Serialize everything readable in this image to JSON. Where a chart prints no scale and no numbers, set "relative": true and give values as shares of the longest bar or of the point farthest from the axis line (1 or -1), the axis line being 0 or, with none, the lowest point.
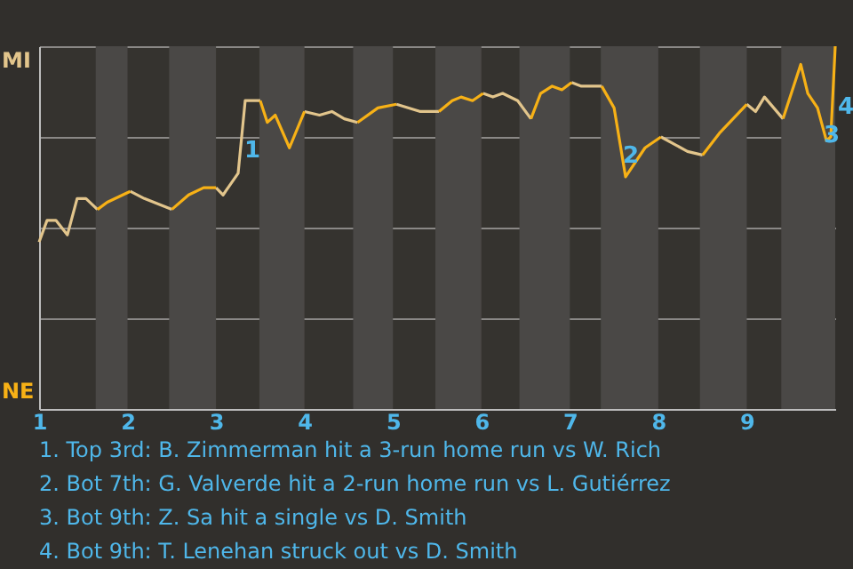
{
  "chart_data": {
    "type": "line",
    "relative": true,
    "x": [
      1.0,
      1.09,
      1.19,
      1.32,
      1.43,
      1.53,
      1.66,
      1.77,
      2.03,
      2.19,
      2.5,
      2.69,
      2.86,
      3.0,
      3.08,
      3.25,
      3.33,
      3.4,
      3.5,
      3.58,
      3.67,
      3.83,
      4.0,
      4.17,
      4.31,
      4.45,
      4.6,
      4.83,
      5.04,
      5.31,
      5.52,
      5.67,
      5.77,
      5.9,
      6.02,
      6.13,
      6.24,
      6.41,
      6.56,
      6.67,
      6.8,
      6.91,
      7.02,
      7.13,
      7.36,
      7.5,
      7.63,
      7.85,
      8.03,
      8.33,
      8.5,
      8.69,
      9.0,
      9.1,
      9.2,
      9.41,
      9.61,
      9.69,
      9.8,
      9.9,
      9.95,
      10.0
    ],
    "series": [
      {
        "color": "#e2c58c",
        "values": [
          0.46,
          0.52,
          0.52,
          0.48,
          0.58,
          0.58,
          0.55,
          null,
          0.6,
          0.58,
          0.55,
          null,
          null,
          0.61,
          0.59,
          0.65,
          0.85,
          0.85,
          0.85,
          null,
          null,
          null,
          0.82,
          0.81,
          0.82,
          0.8,
          0.79,
          null,
          0.84,
          0.82,
          0.82,
          null,
          null,
          null,
          0.87,
          0.86,
          0.87,
          0.85,
          0.8,
          null,
          null,
          null,
          0.9,
          0.89,
          0.89,
          null,
          null,
          null,
          0.75,
          0.71,
          0.7,
          null,
          0.84,
          0.82,
          0.86,
          0.8,
          null,
          null,
          null,
          null,
          null,
          null
        ]
      },
      {
        "color": "#f7b116",
        "values": [
          null,
          null,
          null,
          null,
          null,
          null,
          0.55,
          0.57,
          0.6,
          null,
          0.55,
          0.59,
          0.61,
          0.61,
          null,
          null,
          null,
          null,
          0.85,
          0.79,
          0.81,
          0.72,
          0.82,
          null,
          null,
          null,
          0.79,
          0.83,
          0.84,
          null,
          0.82,
          0.85,
          0.86,
          0.85,
          0.87,
          null,
          null,
          null,
          0.8,
          0.87,
          0.89,
          0.88,
          0.9,
          null,
          0.89,
          0.83,
          0.64,
          0.72,
          0.75,
          null,
          0.7,
          0.76,
          0.84,
          null,
          null,
          0.8,
          0.95,
          0.87,
          0.83,
          0.74,
          0.75,
          1
        ]
      }
    ],
    "xlim": [
      1,
      10
    ],
    "xticks": [
      1,
      2,
      3,
      4,
      5,
      6,
      7,
      8,
      9
    ],
    "grid": "y",
    "bands": [
      {
        "axis": "x",
        "from": 1.64,
        "to": 2,
        "color": "#4a4846"
      },
      {
        "axis": "x",
        "from": 2.47,
        "to": 3,
        "color": "#4a4846"
      },
      {
        "axis": "x",
        "from": 3.49,
        "to": 4,
        "color": "#4a4846"
      },
      {
        "axis": "x",
        "from": 4.55,
        "to": 5,
        "color": "#4a4846"
      },
      {
        "axis": "x",
        "from": 5.48,
        "to": 6,
        "color": "#4a4846"
      },
      {
        "axis": "x",
        "from": 6.43,
        "to": 7,
        "color": "#4a4846"
      },
      {
        "axis": "x",
        "from": 7.35,
        "to": 8,
        "color": "#4a4846"
      },
      {
        "axis": "x",
        "from": 8.47,
        "to": 9,
        "color": "#4a4846"
      },
      {
        "axis": "x",
        "from": 9.39,
        "to": 10,
        "color": "#4a4846"
      }
    ],
    "annotations": [
      "MI",
      "NE",
      {
        "text": "1",
        "x": 3.33,
        "y": 0.85
      },
      {
        "text": "2",
        "x": 7.63,
        "y": 0.64
      },
      {
        "text": "3",
        "x": 9.9,
        "y": 0.74
      },
      {
        "text": "4",
        "x": 10.0,
        "y": 1
      },
      "1. Top 3rd: B. Zimmerman hit a 3-run home run vs W. Rich",
      "2. Bot 7th: G. Valverde hit a 2-run home run vs L. Gutiérrez",
      "3. Bot 9th: Z. Sa hit a single vs D. Smith",
      "4. Bot 9th: T. Lenehan struck out vs D. Smith"
    ]
  }
}
